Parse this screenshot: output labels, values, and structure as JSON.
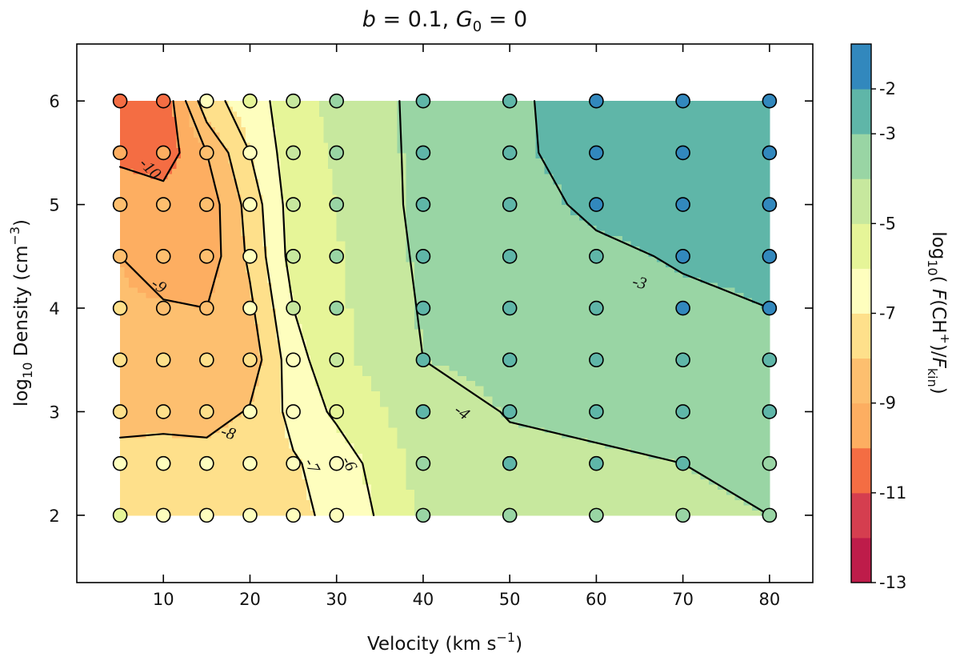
{
  "chart_data": {
    "type": "contour",
    "title": "b = 0.1, G₀ = 0",
    "title_parts": {
      "b_sym": "b",
      "b_val": " = 0.1, ",
      "g_sym": "G",
      "g_sub": "0",
      "g_val": " = 0"
    },
    "xlabel": "Velocity (km s",
    "xlabel_sup": "−1",
    "xlabel_close": ")",
    "ylabel_pre": "log",
    "ylabel_sub": "10",
    "ylabel_main": " Density (cm",
    "ylabel_sup": "−3",
    "ylabel_close": ")",
    "xlim": [
      0,
      85
    ],
    "ylim": [
      1.35,
      6.55
    ],
    "x_ticks": [
      10,
      20,
      30,
      40,
      50,
      60,
      70,
      80
    ],
    "y_ticks": [
      2,
      3,
      4,
      5,
      6
    ],
    "x_grid": [
      5,
      10,
      15,
      20,
      25,
      30,
      40,
      50,
      60,
      70,
      80
    ],
    "y_grid": [
      2,
      2.5,
      3,
      3.5,
      4,
      4.5,
      5,
      5.5,
      6
    ],
    "grid_values": [
      [
        -7.6,
        -7.3,
        -7.2,
        -7.2,
        -7.1,
        -6.9,
        -4.8,
        -4.3,
        -4.2,
        -4.1,
        -4.0
      ],
      [
        -7.8,
        -7.6,
        -7.5,
        -7.3,
        -7.1,
        -6.6,
        -4.6,
        -4.2,
        -4.1,
        -4.0,
        -3.9
      ],
      [
        -8.2,
        -8.3,
        -8.5,
        -7.9,
        -6.7,
        -5.8,
        -4.4,
        -3.95,
        -3.85,
        -3.75,
        -3.7
      ],
      [
        -8.6,
        -8.7,
        -8.8,
        -8.6,
        -6.4,
        -5.3,
        -4.0,
        -3.8,
        -3.65,
        -3.55,
        -3.45
      ],
      [
        -8.9,
        -8.9,
        -9.0,
        -8.2,
        -6.0,
        -5.2,
        -3.9,
        -3.6,
        -3.4,
        -3.2,
        -3.0
      ],
      [
        -9.0,
        -9.5,
        -9.6,
        -7.8,
        -5.6,
        -5.1,
        -3.8,
        -3.5,
        -3.2,
        -2.9,
        -2.8
      ],
      [
        -9.2,
        -9.5,
        -9.6,
        -7.6,
        -5.5,
        -5.0,
        -3.7,
        -3.4,
        -2.8,
        -2.7,
        -2.6
      ],
      [
        -10.3,
        -10.6,
        -9.0,
        -7.0,
        -5.4,
        -4.9,
        -3.7,
        -3.2,
        -2.6,
        -2.5,
        -2.5
      ],
      [
        -10.6,
        -10.8,
        -7.3,
        -6.6,
        -5.3,
        -4.8,
        -3.7,
        -3.2,
        -2.5,
        -2.4,
        -2.4
      ]
    ],
    "marker_colors": [
      [
        "#e6f598",
        "#fefebe",
        "#fefebe",
        "#fefebe",
        "#fefebe",
        "#fefebe",
        "#99d5a4",
        "#99d5a4",
        "#99d5a4",
        "#99d5a4",
        "#99d5a4"
      ],
      [
        "#fefebe",
        "#fefebe",
        "#fefebe",
        "#fefebe",
        "#fefebe",
        "#fefebe",
        "#99d5a4",
        "#5fb6a8",
        "#5fb6a8",
        "#5fb6a8",
        "#99d5a4"
      ],
      [
        "#fee08b",
        "#fee08b",
        "#fee08b",
        "#fefebe",
        "#fefebe",
        "#e6f598",
        "#5fb6a8",
        "#5fb6a8",
        "#5fb6a8",
        "#5fb6a8",
        "#5fb6a8"
      ],
      [
        "#fee08b",
        "#fee08b",
        "#fee08b",
        "#fee08b",
        "#fefebe",
        "#c7e89e",
        "#5fb6a8",
        "#5fb6a8",
        "#5fb6a8",
        "#5fb6a8",
        "#5fb6a8"
      ],
      [
        "#fee08b",
        "#fdbf6f",
        "#fdbf6f",
        "#fefebe",
        "#c7e89e",
        "#99d5a4",
        "#5fb6a8",
        "#5fb6a8",
        "#5fb6a8",
        "#3288bd",
        "#3288bd"
      ],
      [
        "#fdbf6f",
        "#fdbf6f",
        "#fdbf6f",
        "#fefebe",
        "#c7e89e",
        "#99d5a4",
        "#5fb6a8",
        "#5fb6a8",
        "#5fb6a8",
        "#3288bd",
        "#3288bd"
      ],
      [
        "#fdbf6f",
        "#fdbf6f",
        "#fdbf6f",
        "#fefebe",
        "#c7e89e",
        "#99d5a4",
        "#5fb6a8",
        "#5fb6a8",
        "#3288bd",
        "#3288bd",
        "#3288bd"
      ],
      [
        "#fdae61",
        "#fdae61",
        "#fdbf6f",
        "#fefebe",
        "#c7e89e",
        "#99d5a4",
        "#5fb6a8",
        "#5fb6a8",
        "#3288bd",
        "#3288bd",
        "#3288bd"
      ],
      [
        "#f46d43",
        "#f46d43",
        "#fefebe",
        "#e6f598",
        "#c7e89e",
        "#99d5a4",
        "#5fb6a8",
        "#5fb6a8",
        "#3288bd",
        "#3288bd",
        "#3288bd"
      ]
    ],
    "fill_levels": [
      -13,
      -12,
      -11,
      -10,
      -9,
      -8,
      -7,
      -6,
      -5,
      -4,
      -3,
      -2,
      -1
    ],
    "fill_colors": [
      "#be1c4a",
      "#d53e4f",
      "#f46d43",
      "#fdae61",
      "#fdbf6f",
      "#fee08b",
      "#fefebe",
      "#e6f598",
      "#c7e89e",
      "#99d5a4",
      "#5fb6a8",
      "#3288bd",
      "#4a67ac"
    ],
    "contour_levels": [
      -10,
      -9,
      -8,
      -7,
      -6,
      -4,
      -3
    ],
    "contour_labels": [
      {
        "text": "-10",
        "x": 8.5,
        "y": 5.35,
        "angle": 45
      },
      {
        "text": "-9",
        "x": 9.5,
        "y": 4.22,
        "angle": 35
      },
      {
        "text": "-8",
        "x": 17.5,
        "y": 2.8,
        "angle": 18
      },
      {
        "text": "-7",
        "x": 27.2,
        "y": 2.48,
        "angle": 62
      },
      {
        "text": "-6",
        "x": 31.5,
        "y": 2.5,
        "angle": 62
      },
      {
        "text": "-4",
        "x": 44.5,
        "y": 3.0,
        "angle": 36
      },
      {
        "text": "-3",
        "x": 65,
        "y": 4.25,
        "angle": 14
      }
    ],
    "colorbar": {
      "label_pre": "log",
      "label_sub": "10",
      "label_f": " F",
      "label_ch": "(CH",
      "label_plus": "+",
      "label_mid": ")/",
      "label_fk": "F",
      "label_kin": "kin",
      "label_close": ")",
      "label_open": "(",
      "ticks": [
        "-2",
        "-3",
        "-5",
        "-7",
        "-9",
        "-11",
        "-13"
      ],
      "tick_values": [
        -2,
        -3,
        -5,
        -7,
        -9,
        -11,
        -13
      ],
      "range": [
        -13,
        -1
      ]
    }
  }
}
